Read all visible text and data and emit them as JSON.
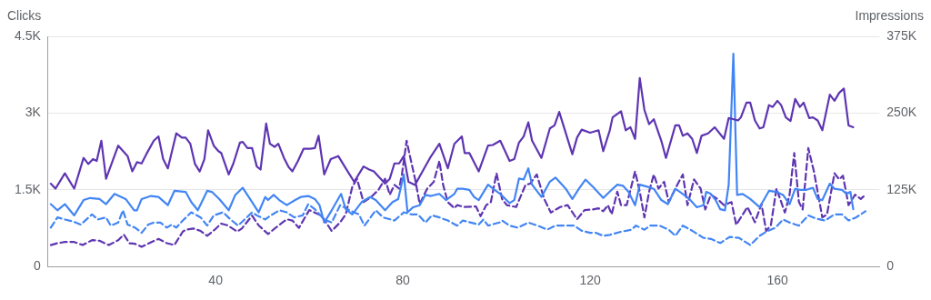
{
  "chart_data": {
    "type": "line",
    "ylabel": "Clicks",
    "y2label": "Impressions",
    "xlim": [
      4.2,
      181.8
    ],
    "xticks": [
      40,
      80,
      120,
      160
    ],
    "ylim": [
      0,
      4500
    ],
    "yticks": [
      0,
      {
        "value": 1500,
        "label": "1.5K"
      },
      {
        "value": 3000,
        "label": "3K"
      },
      {
        "value": 4500,
        "label": "4.5K"
      }
    ],
    "y2lim": [
      0,
      375000
    ],
    "y2ticks": [
      0,
      {
        "value": 125000,
        "label": "125K"
      },
      {
        "value": 250000,
        "label": "250K"
      },
      {
        "value": 375000,
        "label": "375K"
      }
    ],
    "grid": "y",
    "legend": false,
    "series": [
      {
        "color": "#5e35b1",
        "axis": "y2",
        "line_style": "solid",
        "x": [
          4.8,
          5.8,
          7.8,
          9.8,
          11.8,
          12.8,
          13.8,
          14.6,
          15.6,
          16.6,
          19.2,
          21.2,
          22.2,
          23.2,
          24.2,
          25.2,
          26.8,
          27.8,
          28.8,
          29.8,
          31.6,
          32.8,
          33.6,
          34.6,
          35.6,
          36.6,
          37.6,
          38.4,
          39.6,
          40.6,
          41.2,
          42.8,
          43.8,
          45.2,
          45.8,
          46.8,
          47.8,
          48.8,
          49.6,
          50.8,
          51.6,
          52.6,
          53.4,
          54.6,
          55.6,
          56.4,
          57.6,
          58.8,
          60.2,
          61.2,
          62,
          63.2,
          64.6,
          66.2,
          67.8,
          69.6,
          71.6,
          72.8,
          73.8,
          76.2,
          77.2,
          78.2,
          79.2,
          80.2,
          81.2,
          82.6,
          84.2,
          85.8,
          87.8,
          89.6,
          91,
          92.6,
          93.2,
          94.2,
          96.2,
          98.2,
          99.2,
          100.8,
          102.8,
          103.8,
          104.8,
          105.8,
          106.8,
          107.6,
          109.6,
          111.4,
          112.4,
          113.4,
          116.2,
          117.2,
          118.2,
          120,
          121.8,
          122.8,
          124.2,
          124.8,
          126.6,
          127.6,
          128.6,
          129.6,
          130.6,
          131.6,
          132.6,
          133.6,
          135.2,
          136.2,
          138.2,
          139,
          139.8,
          140.8,
          141.8,
          142.8,
          143.8,
          145.2,
          146.6,
          148.6,
          149.6,
          151.6,
          152.2,
          153.4,
          154.2,
          155.2,
          156.2,
          157,
          158.2,
          159,
          160,
          160.8,
          161.8,
          162.8,
          163.8,
          164.8,
          165.6,
          166.8,
          167.6,
          168.6,
          169.6,
          171.2,
          172.2,
          173.2,
          174.2,
          175.2,
          176.2
        ],
        "values": [
          135000,
          127000,
          152000,
          127000,
          177000,
          167000,
          175000,
          172000,
          205000,
          143000,
          197000,
          180000,
          155000,
          170000,
          168000,
          183000,
          205000,
          212000,
          175000,
          160000,
          217000,
          210000,
          210000,
          200000,
          167000,
          155000,
          175000,
          222000,
          197000,
          188000,
          185000,
          150000,
          168000,
          202000,
          203000,
          193000,
          193000,
          163000,
          158000,
          233000,
          200000,
          195000,
          200000,
          177000,
          162000,
          155000,
          172000,
          192000,
          192000,
          193000,
          213000,
          150000,
          175000,
          180000,
          160000,
          138000,
          163000,
          158000,
          155000,
          135000,
          143000,
          168000,
          168000,
          180000,
          138000,
          133000,
          155000,
          177000,
          200000,
          160000,
          200000,
          212000,
          185000,
          185000,
          155000,
          197000,
          198000,
          205000,
          172000,
          175000,
          202000,
          212000,
          235000,
          205000,
          177000,
          225000,
          230000,
          252000,
          183000,
          210000,
          223000,
          218000,
          222000,
          188000,
          222000,
          243000,
          253000,
          222000,
          227000,
          208000,
          307000,
          255000,
          232000,
          240000,
          205000,
          177000,
          230000,
          230000,
          213000,
          217000,
          208000,
          185000,
          213000,
          217000,
          227000,
          208000,
          242000,
          238000,
          243000,
          267000,
          267000,
          238000,
          225000,
          227000,
          263000,
          260000,
          270000,
          263000,
          243000,
          237000,
          273000,
          260000,
          267000,
          242000,
          243000,
          238000,
          222000,
          280000,
          270000,
          283000,
          290000,
          230000,
          227000
        ]
      },
      {
        "color": "#4285f4",
        "line_style": "solid",
        "x": [
          4.8,
          6.2,
          7.8,
          9.8,
          11.8,
          13.2,
          15.2,
          16.6,
          18.4,
          20.8,
          22.6,
          23.2,
          24.2,
          26.2,
          27.8,
          29.8,
          31.2,
          33.6,
          34.8,
          36.2,
          38.2,
          39.2,
          40.8,
          42.8,
          44.2,
          45.8,
          47.8,
          49.2,
          50.6,
          51.2,
          52.4,
          53.6,
          55.2,
          57,
          58.2,
          59.8,
          61.2,
          62.2,
          63.2,
          64.8,
          66.8,
          67.8,
          69.2,
          71.2,
          73,
          74.2,
          76.2,
          77.8,
          79,
          80.2,
          81,
          82.2,
          83.6,
          84.8,
          86,
          87.8,
          89.2,
          91,
          91.6,
          92.8,
          94.2,
          95.2,
          96.2,
          98.2,
          99.6,
          100.8,
          102.8,
          103.8,
          104.8,
          105.8,
          106.8,
          107.6,
          109.6,
          111.4,
          112.6,
          113.8,
          114.8,
          116.2,
          117.6,
          119,
          120.6,
          122.8,
          124.6,
          125.8,
          127,
          128.2,
          129.6,
          130.6,
          132.2,
          133.6,
          135.2,
          136.6,
          138.2,
          139.8,
          141.2,
          142.8,
          144.2,
          144.8,
          145.8,
          146.8,
          147.8,
          148.8,
          149.6,
          150.6,
          151.4,
          152.6,
          154.2,
          156.2,
          158.2,
          159.8,
          161.2,
          162.6,
          163.8,
          164.8,
          166.2,
          167.6,
          168.6,
          169.6,
          171.2,
          172.2,
          173.8,
          174.8,
          175.6,
          176.2
        ],
        "values": [
          1220,
          1100,
          1220,
          1000,
          1300,
          1340,
          1320,
          1220,
          1420,
          1320,
          1100,
          1100,
          1320,
          1380,
          1360,
          1200,
          1480,
          1460,
          1260,
          1100,
          1480,
          1460,
          1320,
          1100,
          1400,
          1540,
          1260,
          1060,
          1360,
          1300,
          1400,
          1300,
          1200,
          1300,
          1360,
          1380,
          1320,
          1200,
          860,
          1100,
          1420,
          1120,
          1020,
          1260,
          1360,
          1300,
          1100,
          1260,
          1320,
          1800,
          1060,
          1160,
          1200,
          1400,
          1380,
          1420,
          1300,
          1420,
          1520,
          1520,
          1500,
          1360,
          1300,
          1600,
          1500,
          1420,
          1240,
          1300,
          1720,
          1700,
          1920,
          1600,
          1360,
          1660,
          1740,
          1620,
          1520,
          1320,
          1520,
          1700,
          1560,
          1340,
          1500,
          1600,
          1580,
          1460,
          1200,
          1600,
          1560,
          1520,
          1300,
          1220,
          1520,
          1420,
          1320,
          1160,
          1200,
          1460,
          1420,
          1300,
          1120,
          1100,
          1600,
          4160,
          1400,
          1420,
          1320,
          1160,
          1480,
          1460,
          1400,
          1220,
          1520,
          1500,
          1500,
          1540,
          1320,
          1300,
          1620,
          1520,
          1500,
          1420,
          1460,
          1120
        ]
      },
      {
        "color": "#4285f4",
        "line_style": "dashed",
        "x": [
          4.8,
          6.2,
          7.8,
          9.6,
          11.2,
          13.6,
          14.8,
          16.6,
          17.6,
          19.2,
          20.2,
          21.2,
          22.8,
          24.2,
          25.6,
          26.8,
          28.2,
          29.6,
          30.6,
          31.6,
          33,
          34.8,
          36.8,
          38.2,
          39.6,
          41.6,
          43.2,
          44.8,
          46.2,
          47.8,
          48.8,
          50.6,
          51.8,
          53.6,
          55.2,
          56.8,
          58.6,
          59.8,
          61.2,
          63.2,
          64.8,
          66.6,
          68.6,
          70.6,
          71.8,
          74.2,
          75.8,
          78.2,
          80.2,
          81.8,
          83.2,
          84.8,
          86.2,
          87.8,
          89.6,
          91.6,
          92.8,
          96.2,
          97.2,
          98.2,
          100.6,
          101.2,
          102.8,
          104.6,
          106.8,
          108.8,
          110.8,
          112.6,
          114.8,
          116.6,
          118.2,
          120,
          121.2,
          122.8,
          124.2,
          126.6,
          128.8,
          129.8,
          131.6,
          132.8,
          134.8,
          136.8,
          138.2,
          139.8,
          141.8,
          144.2,
          145.8,
          147.8,
          149.8,
          151.8,
          154.2,
          156.2,
          157.6,
          159.6,
          161.2,
          162.6,
          164.6,
          166.6,
          168.2,
          170.2,
          172.2,
          173.8,
          175.2,
          176.8,
          178.8
        ],
        "values": [
          760,
          960,
          920,
          880,
          820,
          1020,
          920,
          960,
          800,
          860,
          1100,
          820,
          760,
          660,
          820,
          860,
          860,
          760,
          820,
          760,
          900,
          1060,
          960,
          800,
          1000,
          1060,
          920,
          800,
          920,
          1060,
          1000,
          920,
          1000,
          1100,
          1060,
          960,
          1000,
          1220,
          1120,
          920,
          860,
          1200,
          1100,
          1020,
          800,
          1100,
          960,
          900,
          1060,
          1020,
          1020,
          860,
          1000,
          960,
          900,
          800,
          900,
          820,
          920,
          800,
          860,
          900,
          800,
          760,
          860,
          800,
          720,
          800,
          800,
          800,
          700,
          660,
          660,
          600,
          620,
          680,
          720,
          800,
          720,
          800,
          800,
          720,
          600,
          800,
          700,
          560,
          540,
          460,
          580,
          560,
          420,
          600,
          680,
          760,
          920,
          860,
          800,
          1000,
          940,
          900,
          1020,
          1020,
          900,
          960,
          1080
        ]
      },
      {
        "color": "#5e35b1",
        "axis": "y2",
        "line_style": "dashed",
        "x": [
          4.8,
          6.2,
          7.8,
          9.8,
          11.6,
          13.6,
          15.2,
          17.2,
          19.2,
          20.4,
          21.6,
          22.8,
          24.2,
          25.8,
          27.8,
          29.6,
          31.2,
          33,
          33.6,
          35.2,
          36.8,
          38.2,
          39.8,
          41.2,
          42.6,
          44.6,
          45.6,
          47.8,
          49.2,
          51.2,
          52.8,
          55.2,
          56.4,
          57.8,
          60,
          62,
          62.6,
          64.8,
          66.6,
          67.8,
          69.2,
          70.2,
          71.6,
          73.2,
          74.8,
          76.2,
          77.2,
          78.2,
          79.2,
          79.8,
          80.8,
          81.6,
          82.6,
          83.6,
          85.2,
          86.6,
          87.8,
          88.6,
          89.6,
          91,
          91.6,
          93.2,
          95.6,
          96.6,
          97.8,
          98.8,
          100,
          101.2,
          102.2,
          104.2,
          106.2,
          107.2,
          108.6,
          110.2,
          111.6,
          113.6,
          115.2,
          117.2,
          118.8,
          120.6,
          121.8,
          122.8,
          123.8,
          124.6,
          125.8,
          126.6,
          127.8,
          129.6,
          130.6,
          131.6,
          132.6,
          133.6,
          134.6,
          135.8,
          136.8,
          138.6,
          139.8,
          140.8,
          142.2,
          143.6,
          144.6,
          145.8,
          147.2,
          148.6,
          150.2,
          151.2,
          152.2,
          153.6,
          155.2,
          156.6,
          157.6,
          158.6,
          159.8,
          161.6,
          162.6,
          163.6,
          164.6,
          165.4,
          166.6,
          167.8,
          169.6,
          170.6,
          172.2,
          173.2,
          174,
          175.2,
          176.6,
          177.8,
          178.8
        ],
        "values": [
          35000,
          38000,
          40000,
          40000,
          35000,
          43000,
          42000,
          35000,
          43000,
          52000,
          38000,
          37000,
          32000,
          38000,
          45000,
          38000,
          35000,
          57000,
          60000,
          62000,
          58000,
          50000,
          60000,
          70000,
          67000,
          57000,
          62000,
          83000,
          67000,
          53000,
          63000,
          77000,
          75000,
          63000,
          92000,
          85000,
          83000,
          58000,
          72000,
          85000,
          130000,
          143000,
          105000,
          113000,
          125000,
          143000,
          117000,
          133000,
          127000,
          150000,
          205000,
          177000,
          143000,
          102000,
          127000,
          138000,
          172000,
          133000,
          105000,
          95000,
          100000,
          97000,
          98000,
          82000,
          100000,
          105000,
          152000,
          110000,
          100000,
          97000,
          133000,
          135000,
          150000,
          110000,
          88000,
          97000,
          100000,
          77000,
          92000,
          93000,
          95000,
          90000,
          100000,
          85000,
          122000,
          100000,
          100000,
          155000,
          122000,
          80000,
          122000,
          150000,
          127000,
          138000,
          105000,
          133000,
          150000,
          100000,
          142000,
          127000,
          93000,
          117000,
          110000,
          100000,
          105000,
          68000,
          80000,
          97000,
          72000,
          102000,
          58000,
          67000,
          127000,
          88000,
          117000,
          185000,
          105000,
          93000,
          193000,
          155000,
          80000,
          85000,
          152000,
          142000,
          148000,
          100000,
          117000,
          110000,
          117000
        ]
      }
    ]
  }
}
